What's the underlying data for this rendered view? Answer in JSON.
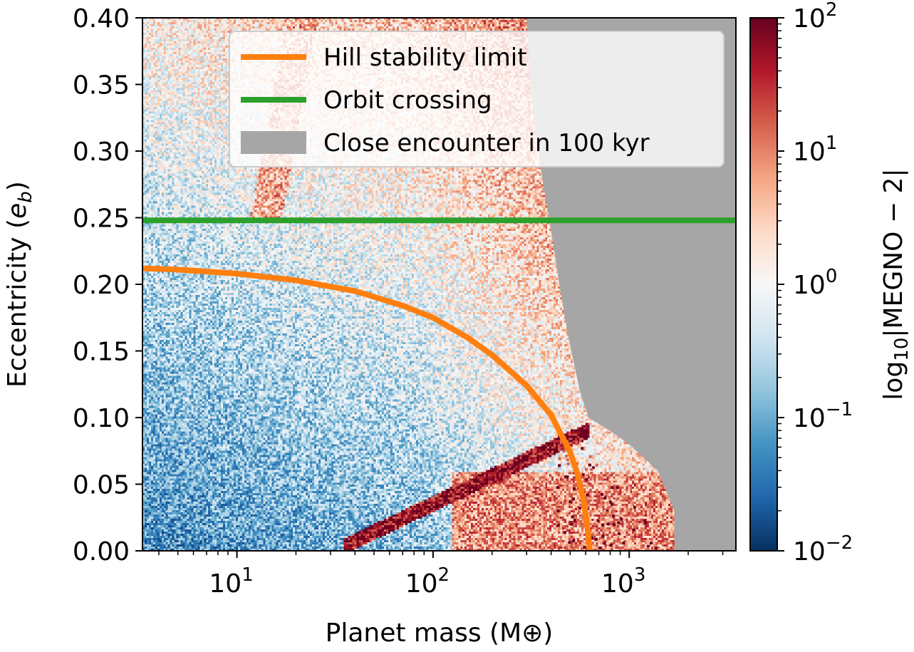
{
  "chart_data": {
    "type": "heatmap",
    "xlabel": "Planet mass (M⊕)",
    "ylabel": "Eccentricity (e_b)",
    "x_scale": "log",
    "xlim": [
      3.3,
      3500
    ],
    "ylim": [
      0.0,
      0.4
    ],
    "x_ticks": [
      {
        "value": 10,
        "label": "10",
        "exp": "1"
      },
      {
        "value": 100,
        "label": "10",
        "exp": "2"
      },
      {
        "value": 1000,
        "label": "10",
        "exp": "3"
      }
    ],
    "y_ticks": [
      {
        "value": 0.0,
        "label": "0.00"
      },
      {
        "value": 0.05,
        "label": "0.05"
      },
      {
        "value": 0.1,
        "label": "0.10"
      },
      {
        "value": 0.15,
        "label": "0.15"
      },
      {
        "value": 0.2,
        "label": "0.20"
      },
      {
        "value": 0.25,
        "label": "0.25"
      },
      {
        "value": 0.3,
        "label": "0.30"
      },
      {
        "value": 0.35,
        "label": "0.35"
      },
      {
        "value": 0.4,
        "label": "0.40"
      }
    ],
    "colorbar": {
      "label": "log10|MEGNO − 2|",
      "label_parts": {
        "pre": "log",
        "sub": "10",
        "post": "|MEGNO − 2|"
      },
      "scale": "log",
      "range": [
        0.01,
        100
      ],
      "cmap": "RdBu_r",
      "ticks": [
        {
          "value": 0.01,
          "base": "10",
          "exp": "−2"
        },
        {
          "value": 0.1,
          "base": "10",
          "exp": "−1"
        },
        {
          "value": 1,
          "base": "10",
          "exp": "0"
        },
        {
          "value": 10,
          "base": "10",
          "exp": "1"
        },
        {
          "value": 100,
          "base": "10",
          "exp": "2"
        }
      ]
    },
    "series": [
      {
        "name": "Hill stability limit",
        "kind": "line",
        "color": "#ff7f0e",
        "points": [
          [
            3.3,
            0.212
          ],
          [
            5,
            0.211
          ],
          [
            10,
            0.208
          ],
          [
            20,
            0.203
          ],
          [
            40,
            0.195
          ],
          [
            70,
            0.184
          ],
          [
            100,
            0.175
          ],
          [
            150,
            0.16
          ],
          [
            200,
            0.147
          ],
          [
            300,
            0.124
          ],
          [
            400,
            0.102
          ],
          [
            500,
            0.074
          ],
          [
            550,
            0.056
          ],
          [
            590,
            0.035
          ],
          [
            615,
            0.015
          ],
          [
            630,
            0.0
          ]
        ]
      },
      {
        "name": "Orbit crossing",
        "kind": "hline",
        "color": "#2ca02c",
        "y": 0.248
      },
      {
        "name": "Close encounter in 100 kyr",
        "kind": "region",
        "color": "#a6a6a6",
        "boundary": [
          [
            3500,
            0.4
          ],
          [
            300,
            0.4
          ],
          [
            310,
            0.36
          ],
          [
            330,
            0.32
          ],
          [
            360,
            0.28
          ],
          [
            400,
            0.24
          ],
          [
            440,
            0.2
          ],
          [
            490,
            0.16
          ],
          [
            560,
            0.12
          ],
          [
            620,
            0.1
          ],
          [
            800,
            0.09
          ],
          [
            1000,
            0.08
          ],
          [
            1400,
            0.06
          ],
          [
            1700,
            0.03
          ],
          [
            1700,
            0.0
          ],
          [
            3500,
            0.0
          ]
        ]
      }
    ],
    "legend": {
      "position": "top-right"
    }
  }
}
